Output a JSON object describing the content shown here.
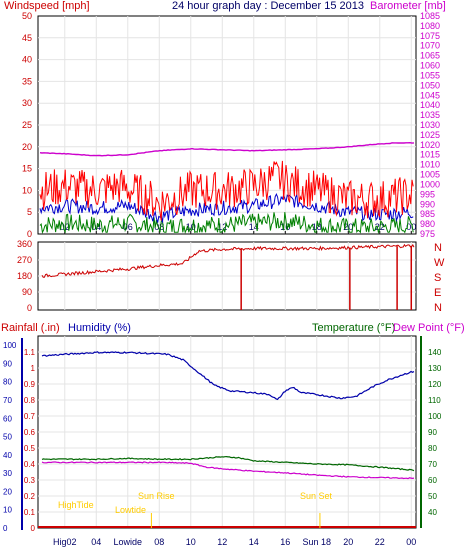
{
  "header": {
    "windspeed_label": "Windspeed [mph]",
    "title": "24 hour graph day : December 15 2013",
    "barometer_label": "Barometer [mb]"
  },
  "lower_header": {
    "rainfall_label": "Rainfall (.in)",
    "humidity_label": "Humidity (%)",
    "temperature_label": "Temperature (°F)",
    "dewpoint_label": "Dew Point (°F)"
  },
  "colors": {
    "wind_gust": "#ff0000",
    "wind_avg": "#0000cc",
    "wind_low": "#008000",
    "barometer": "#cc00cc",
    "direction": "#cc0000",
    "humidity": "#0000aa",
    "temperature": "#006600",
    "dewpoint": "#cc00cc",
    "rain": "#cc0000",
    "event": "#ffcc00",
    "grid": "#e4e4e4"
  },
  "annotations": {
    "high_tide": "HighTide",
    "low_tide": "Lowtide",
    "sun_rise": "Sun Rise",
    "sun_set": "Sun Set",
    "high_tide_bottom": "HighTide",
    "low_tide_bottom": "Lowtide",
    "sun_set_bottom": "Sun Set"
  },
  "chart_data": [
    {
      "type": "line",
      "title": "24 hour graph day : December 15 2013",
      "x_ticks": [
        "02",
        "04",
        "06",
        "08",
        "10",
        "12",
        "14",
        "16",
        "18",
        "20",
        "22",
        "00"
      ],
      "xlim": [
        0.3,
        24.3
      ],
      "left_axis": {
        "label": "Windspeed [mph]",
        "ylim": [
          0,
          50
        ],
        "ticks": [
          0,
          5,
          10,
          15,
          20,
          25,
          30,
          35,
          40,
          45,
          50
        ]
      },
      "right_axis": {
        "label": "Barometer [mb]",
        "ylim": [
          975,
          1085
        ],
        "ticks": [
          975,
          980,
          985,
          990,
          995,
          1000,
          1005,
          1010,
          1015,
          1020,
          1025,
          1030,
          1035,
          1040,
          1045,
          1050,
          1055,
          1060,
          1065,
          1070,
          1075,
          1080,
          1085
        ]
      },
      "grid": true,
      "series": [
        {
          "key": "gust",
          "color_key": "wind_gust",
          "axis": "left",
          "x": [
            0.5,
            2,
            4,
            5.5,
            7,
            8,
            10,
            12,
            14,
            15.5,
            16,
            18,
            20,
            22,
            24
          ],
          "y": [
            10,
            11,
            10,
            11,
            9,
            7,
            10,
            10,
            11,
            13,
            12,
            10,
            8,
            8,
            9
          ]
        },
        {
          "key": "avg",
          "color_key": "wind_avg",
          "axis": "left",
          "x": [
            0.5,
            2,
            4,
            6,
            8,
            10,
            12,
            14,
            16,
            18,
            20,
            22,
            24
          ],
          "y": [
            6,
            6.5,
            6,
            6.5,
            4,
            5.5,
            6,
            6.5,
            8,
            6.5,
            5,
            4.5,
            5
          ]
        },
        {
          "key": "low",
          "color_key": "wind_low",
          "axis": "left",
          "x": [
            0.5,
            2,
            4,
            6,
            8,
            10,
            12,
            14,
            16,
            18,
            20,
            22,
            24
          ],
          "y": [
            2,
            2.5,
            2,
            2.5,
            1.5,
            2,
            2,
            2.5,
            3,
            2,
            1.5,
            1.5,
            2
          ]
        },
        {
          "key": "pressure",
          "color_key": "barometer",
          "axis": "right",
          "x": [
            0.3,
            2,
            4,
            6,
            8,
            10,
            12,
            14,
            16,
            18,
            20,
            22,
            23,
            24.3
          ],
          "y": [
            1016,
            1015.5,
            1014.5,
            1015,
            1017,
            1018,
            1017.5,
            1017,
            1017.5,
            1018,
            1019,
            1020.5,
            1021,
            1021
          ]
        }
      ]
    },
    {
      "type": "line",
      "title": "",
      "x_ticks": [],
      "xlim": [
        0.3,
        24.3
      ],
      "left_axis": {
        "label": "",
        "ylim": [
          0,
          360
        ],
        "ticks": [
          0,
          90,
          180,
          270,
          360
        ]
      },
      "right_axis": {
        "label": "",
        "ticks": [
          "N",
          "W",
          "S",
          "E",
          "N"
        ]
      },
      "series": [
        {
          "key": "direction",
          "color_key": "direction",
          "axis": "left",
          "x": [
            0.5,
            2,
            4,
            6,
            8,
            9.5,
            10.5,
            12,
            14,
            16,
            18,
            20,
            22,
            24
          ],
          "y": [
            180,
            190,
            205,
            220,
            240,
            250,
            320,
            330,
            335,
            335,
            335,
            340,
            345,
            350
          ]
        }
      ],
      "drops_x": [
        13.2,
        20.1,
        23.1,
        24
      ]
    },
    {
      "type": "line",
      "title": "",
      "x_ticks": [
        "Hig02",
        "04",
        "Lowide",
        "08",
        "10",
        "12",
        "14",
        "16",
        "Sun 18",
        "20",
        "22",
        "00"
      ],
      "xlim": [
        0.3,
        24.3
      ],
      "left_axis": {
        "label": "Rainfall (.in)",
        "ylim": [
          0,
          1.2
        ],
        "ticks": [
          0,
          0.1,
          0.2,
          0.3,
          0.4,
          0.5,
          0.6,
          0.7,
          0.8,
          0.9,
          1,
          1.1
        ]
      },
      "humidity_axis": {
        "label": "Humidity (%)",
        "ylim": [
          0,
          105
        ],
        "ticks": [
          0,
          10,
          20,
          30,
          40,
          50,
          60,
          70,
          80,
          90,
          100
        ]
      },
      "right_axis": {
        "label": "Temperature (°F)",
        "ylim": [
          30,
          150
        ],
        "ticks": [
          40,
          50,
          60,
          70,
          80,
          90,
          100,
          110,
          120,
          130,
          140
        ]
      },
      "series": [
        {
          "key": "humidity",
          "color_key": "humidity",
          "axis": "humidity",
          "x": [
            0.3,
            2,
            4,
            6,
            8.5,
            9.5,
            10.5,
            11.5,
            12.5,
            14,
            15,
            15.5,
            16,
            16.5,
            17,
            18,
            19.5,
            20.5,
            21.5,
            22.5,
            23.5,
            24.3
          ],
          "y": [
            94,
            95,
            96,
            96,
            95,
            92,
            85,
            78,
            75,
            74,
            73,
            70,
            75,
            77,
            74,
            73,
            71,
            72,
            77,
            81,
            84,
            86
          ]
        },
        {
          "key": "temperature",
          "color_key": "temperature",
          "axis": "right",
          "x": [
            0.3,
            2,
            4,
            6,
            8,
            10,
            12,
            13,
            14,
            16,
            18,
            20,
            22,
            24.3
          ],
          "y": [
            73,
            73,
            73,
            73.5,
            73,
            73,
            74.5,
            74,
            72,
            71,
            70,
            69.5,
            68,
            66
          ]
        },
        {
          "key": "dewpoint",
          "color_key": "dewpoint",
          "axis": "right",
          "x": [
            0.3,
            2,
            4,
            6,
            8,
            10,
            11,
            12,
            14,
            16,
            18,
            20,
            22,
            24.3
          ],
          "y": [
            71,
            71,
            71,
            71,
            71,
            70.5,
            68,
            67,
            65.5,
            64.5,
            63,
            62,
            61.5,
            61
          ]
        },
        {
          "key": "rain",
          "color_key": "rain",
          "axis": "left",
          "x": [
            0.3,
            24.3
          ],
          "y": [
            0,
            0
          ]
        }
      ],
      "events_x": [
        7.5,
        18.2
      ]
    }
  ]
}
